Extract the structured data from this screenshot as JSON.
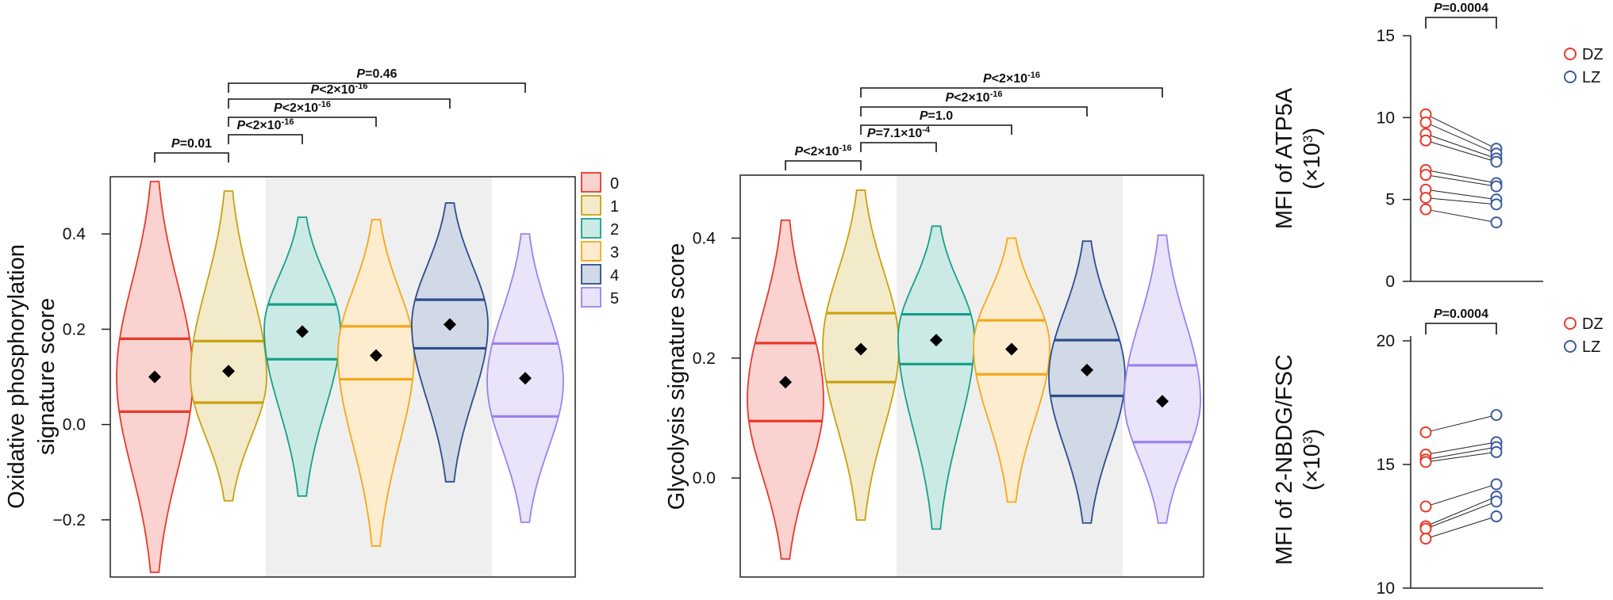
{
  "colors": {
    "c0": "#E8392A",
    "c1": "#C9A10F",
    "c2": "#16A08A",
    "c3": "#F4A81C",
    "c4": "#2E4D8E",
    "c5": "#9C82EA",
    "dz": "#E8392A",
    "lz": "#3C5A9C"
  },
  "legend": {
    "items": [
      "0",
      "1",
      "2",
      "3",
      "4",
      "5"
    ]
  },
  "chart_data": [
    {
      "type": "violin",
      "ylabel": [
        "Oxidative phosphorylation",
        "signature score"
      ],
      "yticks": [
        "0.4",
        "0.2",
        "0.0",
        "−0.2"
      ],
      "ytick_values": [
        0.4,
        0.2,
        0.0,
        -0.2
      ],
      "ylim": [
        -0.32,
        0.52
      ],
      "categories": [
        "0",
        "1",
        "2",
        "3",
        "4",
        "5"
      ],
      "shaded_categories": [
        "2",
        "3",
        "4"
      ],
      "series": [
        {
          "cluster": "0",
          "min": -0.31,
          "max": 0.51,
          "q1": 0.027,
          "mean": 0.1,
          "q3": 0.18,
          "widest": 0.1
        },
        {
          "cluster": "1",
          "min": -0.16,
          "max": 0.49,
          "q1": 0.046,
          "mean": 0.112,
          "q3": 0.175,
          "widest": 0.1
        },
        {
          "cluster": "2",
          "min": -0.15,
          "max": 0.435,
          "q1": 0.137,
          "mean": 0.195,
          "q3": 0.252,
          "widest": 0.2
        },
        {
          "cluster": "3",
          "min": -0.255,
          "max": 0.43,
          "q1": 0.095,
          "mean": 0.145,
          "q3": 0.206,
          "widest": 0.15
        },
        {
          "cluster": "4",
          "min": -0.12,
          "max": 0.465,
          "q1": 0.16,
          "mean": 0.21,
          "q3": 0.262,
          "widest": 0.21
        },
        {
          "cluster": "5",
          "min": -0.205,
          "max": 0.4,
          "q1": 0.017,
          "mean": 0.097,
          "q3": 0.17,
          "widest": 0.09
        }
      ],
      "comparisons": [
        {
          "from": "0",
          "to": "1",
          "label": "P=0.01",
          "p": "P",
          "rest": "=0.01",
          "sup": ""
        },
        {
          "from": "1",
          "to": "2",
          "label": "P<2×10-16",
          "p": "P",
          "rest": "<2×10",
          "sup": "-16"
        },
        {
          "from": "1",
          "to": "3",
          "label": "P<2×10-16",
          "p": "P",
          "rest": "<2×10",
          "sup": "-16"
        },
        {
          "from": "1",
          "to": "4",
          "label": "P<2×10-16",
          "p": "P",
          "rest": "<2×10",
          "sup": "-16"
        },
        {
          "from": "1",
          "to": "5",
          "label": "P=0.46",
          "p": "P",
          "rest": "=0.46",
          "sup": ""
        }
      ]
    },
    {
      "type": "violin",
      "ylabel": [
        "Glycolysis signature score"
      ],
      "yticks": [
        "0.4",
        "0.2",
        "0.0"
      ],
      "ytick_values": [
        0.4,
        0.2,
        0.0
      ],
      "ylim": [
        -0.165,
        0.505
      ],
      "categories": [
        "0",
        "1",
        "2",
        "3",
        "4",
        "5"
      ],
      "shaded_categories": [
        "2",
        "3",
        "4"
      ],
      "series": [
        {
          "cluster": "0",
          "min": -0.135,
          "max": 0.43,
          "q1": 0.095,
          "mean": 0.16,
          "q3": 0.225,
          "widest": 0.13
        },
        {
          "cluster": "1",
          "min": -0.07,
          "max": 0.48,
          "q1": 0.16,
          "mean": 0.215,
          "q3": 0.275,
          "widest": 0.22
        },
        {
          "cluster": "2",
          "min": -0.085,
          "max": 0.42,
          "q1": 0.19,
          "mean": 0.23,
          "q3": 0.273,
          "widest": 0.235
        },
        {
          "cluster": "3",
          "min": -0.04,
          "max": 0.4,
          "q1": 0.173,
          "mean": 0.215,
          "q3": 0.263,
          "widest": 0.22
        },
        {
          "cluster": "4",
          "min": -0.075,
          "max": 0.395,
          "q1": 0.137,
          "mean": 0.18,
          "q3": 0.23,
          "widest": 0.17
        },
        {
          "cluster": "5",
          "min": -0.075,
          "max": 0.405,
          "q1": 0.06,
          "mean": 0.128,
          "q3": 0.188,
          "widest": 0.13
        }
      ],
      "comparisons": [
        {
          "from": "0",
          "to": "1",
          "label": "P<2×10-16",
          "p": "P",
          "rest": "<2×10",
          "sup": "-16"
        },
        {
          "from": "1",
          "to": "2",
          "label": "P=7.1×10-4",
          "p": "P",
          "rest": "=7.1×10",
          "sup": "-4"
        },
        {
          "from": "1",
          "to": "3",
          "label": "P=1.0",
          "p": "P",
          "rest": "=1.0",
          "sup": ""
        },
        {
          "from": "1",
          "to": "4",
          "label": "P<2×10-16",
          "p": "P",
          "rest": "<2×10",
          "sup": "-16"
        },
        {
          "from": "1",
          "to": "5",
          "label": "P<2×10-16",
          "p": "P",
          "rest": "<2×10",
          "sup": "-16"
        }
      ]
    },
    {
      "type": "paired-scatter",
      "ylabel": [
        "MFI of ATP5A",
        "(×10",
        "3",
        ")"
      ],
      "yticks": [
        "15",
        "10",
        "5",
        "0"
      ],
      "ytick_values": [
        15,
        10,
        5,
        0
      ],
      "ylim": [
        0,
        15
      ],
      "categories": [
        "DZ",
        "LZ"
      ],
      "significance": {
        "label": "P=0.0004",
        "p": "P",
        "rest": "=0.0004"
      },
      "legend": [
        "DZ",
        "LZ"
      ],
      "pairs": [
        {
          "DZ": 10.2,
          "LZ": 8.1
        },
        {
          "DZ": 9.7,
          "LZ": 7.8
        },
        {
          "DZ": 9.0,
          "LZ": 7.5
        },
        {
          "DZ": 8.6,
          "LZ": 7.3
        },
        {
          "DZ": 6.8,
          "LZ": 6.0
        },
        {
          "DZ": 6.5,
          "LZ": 5.8
        },
        {
          "DZ": 5.6,
          "LZ": 5.0
        },
        {
          "DZ": 5.1,
          "LZ": 4.7
        },
        {
          "DZ": 4.4,
          "LZ": 3.6
        }
      ]
    },
    {
      "type": "paired-scatter",
      "ylabel": [
        "MFI of 2-NBDG/FSC",
        "(×10",
        "3",
        ")"
      ],
      "yticks": [
        "20",
        "15",
        "10"
      ],
      "ytick_values": [
        20,
        15,
        10
      ],
      "ylim": [
        10,
        20
      ],
      "categories": [
        "DZ",
        "LZ"
      ],
      "significance": {
        "label": "P=0.0004",
        "p": "P",
        "rest": "=0.0004"
      },
      "legend": [
        "DZ",
        "LZ"
      ],
      "pairs": [
        {
          "DZ": 16.3,
          "LZ": 17.0
        },
        {
          "DZ": 15.4,
          "LZ": 15.9
        },
        {
          "DZ": 15.2,
          "LZ": 15.7
        },
        {
          "DZ": 15.1,
          "LZ": 15.5
        },
        {
          "DZ": 13.3,
          "LZ": 14.2
        },
        {
          "DZ": 12.5,
          "LZ": 13.7
        },
        {
          "DZ": 12.4,
          "LZ": 13.5
        },
        {
          "DZ": 12.0,
          "LZ": 12.9
        }
      ]
    }
  ]
}
